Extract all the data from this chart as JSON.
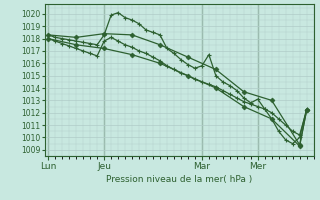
{
  "bg_color": "#c8e8e0",
  "grid_color_minor": "#b0ccc8",
  "grid_color_major": "#88aaaa",
  "line_color": "#2d6030",
  "title": "Pression niveau de la mer( hPa )",
  "ylim": [
    1008.5,
    1020.8
  ],
  "yticks": [
    1009,
    1010,
    1011,
    1012,
    1013,
    1014,
    1015,
    1016,
    1017,
    1018,
    1019,
    1020
  ],
  "xtick_labels": [
    "Lun",
    "Jeu",
    "Mar",
    "Mer"
  ],
  "xtick_positions": [
    0,
    8,
    22,
    30
  ],
  "xvlines": [
    0,
    8,
    22,
    30
  ],
  "xlim": [
    -0.5,
    38
  ],
  "line1_x": [
    0,
    1,
    2,
    3,
    4,
    5,
    6,
    7,
    8,
    9,
    10,
    11,
    12,
    13,
    14,
    15,
    16,
    17,
    18,
    19,
    20,
    21,
    22,
    23,
    24,
    25,
    26,
    27,
    28,
    29,
    30,
    31,
    32,
    33,
    34,
    35,
    36,
    37
  ],
  "line1_y": [
    1018.3,
    1018.1,
    1018.0,
    1017.9,
    1017.8,
    1017.7,
    1017.6,
    1017.5,
    1018.3,
    1019.9,
    1020.1,
    1019.7,
    1019.5,
    1019.2,
    1018.7,
    1018.5,
    1018.3,
    1017.2,
    1016.8,
    1016.3,
    1015.9,
    1015.6,
    1015.8,
    1016.7,
    1015.0,
    1014.5,
    1014.2,
    1013.8,
    1013.2,
    1012.8,
    1013.1,
    1012.3,
    1011.5,
    1010.5,
    1009.8,
    1009.5,
    1010.0,
    1012.3
  ],
  "line2_x": [
    0,
    1,
    2,
    3,
    4,
    5,
    6,
    7,
    8,
    9,
    10,
    11,
    12,
    13,
    14,
    15,
    16,
    17,
    18,
    19,
    20,
    21,
    22,
    23,
    24,
    25,
    26,
    27,
    28,
    29,
    30,
    31,
    32,
    33,
    34,
    35,
    36,
    37
  ],
  "line2_y": [
    1018.0,
    1017.8,
    1017.6,
    1017.4,
    1017.2,
    1017.0,
    1016.8,
    1016.6,
    1017.8,
    1018.1,
    1017.8,
    1017.5,
    1017.3,
    1017.0,
    1016.8,
    1016.5,
    1016.2,
    1015.8,
    1015.5,
    1015.2,
    1015.0,
    1014.7,
    1014.5,
    1014.3,
    1014.1,
    1013.8,
    1013.5,
    1013.2,
    1012.9,
    1012.7,
    1012.5,
    1012.3,
    1012.0,
    1011.5,
    1011.0,
    1010.5,
    1010.2,
    1012.2
  ],
  "line3_x": [
    0,
    4,
    8,
    12,
    16,
    20,
    24,
    28,
    32,
    36,
    37
  ],
  "line3_y": [
    1018.3,
    1018.1,
    1018.4,
    1018.3,
    1017.5,
    1016.5,
    1015.5,
    1013.7,
    1013.0,
    1009.4,
    1012.2
  ],
  "line4_x": [
    0,
    4,
    8,
    12,
    16,
    20,
    24,
    28,
    32,
    36,
    37
  ],
  "line4_y": [
    1018.0,
    1017.5,
    1017.2,
    1016.7,
    1016.0,
    1015.0,
    1014.0,
    1012.5,
    1011.5,
    1009.3,
    1012.2
  ]
}
